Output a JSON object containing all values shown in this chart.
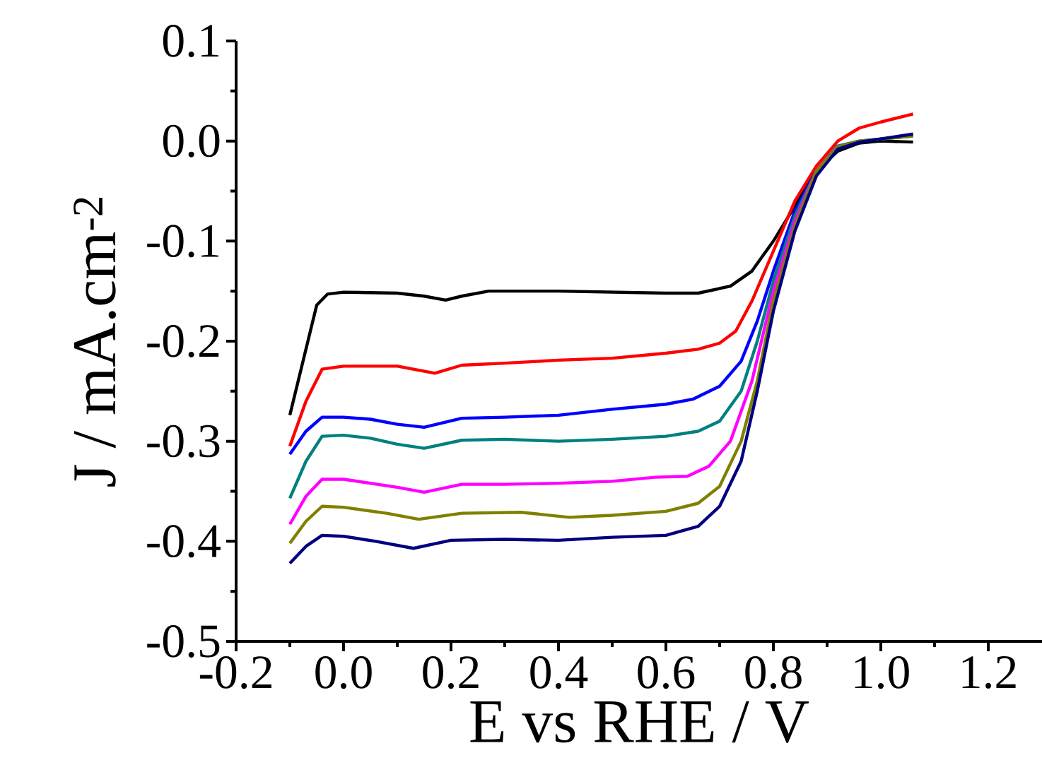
{
  "chart_data": {
    "type": "line",
    "xlabel": "E vs RHE / V",
    "ylabel": "J / mA.cm$^{-2}$",
    "xlim": [
      -0.2,
      1.3
    ],
    "ylim": [
      -0.5,
      0.1
    ],
    "xticks": [
      {
        "value": -0.2,
        "label": "-0.2"
      },
      {
        "value": 0,
        "label": "0.0"
      },
      {
        "value": 0.2,
        "label": "0.2"
      },
      {
        "value": 0.4,
        "label": "0.4"
      },
      {
        "value": 0.6,
        "label": "0.6"
      },
      {
        "value": 0.8,
        "label": "0.8"
      },
      {
        "value": 1.0,
        "label": "1.0"
      },
      {
        "value": 1.2,
        "label": "1.2"
      }
    ],
    "yticks": [
      {
        "value": -0.5,
        "label": "-0.5"
      },
      {
        "value": -0.4,
        "label": "-0.4"
      },
      {
        "value": -0.3,
        "label": "-0.3"
      },
      {
        "value": -0.2,
        "label": "-0.2"
      },
      {
        "value": -0.1,
        "label": "-0.1"
      },
      {
        "value": 0,
        "label": "0.0"
      },
      {
        "value": 0.1,
        "label": "0.1"
      }
    ],
    "grid": false,
    "marker": "none",
    "line_style": "solid",
    "series": [
      {
        "color": "#000000",
        "x": [
          -0.1,
          -0.05,
          -0.03,
          0.0,
          0.1,
          0.15,
          0.19,
          0.22,
          0.27,
          0.4,
          0.6,
          0.66,
          0.72,
          0.76,
          0.8,
          0.84,
          0.88,
          0.92,
          0.96,
          1.0,
          1.06
        ],
        "values": [
          -0.274,
          -0.164,
          -0.153,
          -0.151,
          -0.152,
          -0.155,
          -0.159,
          -0.155,
          -0.15,
          -0.15,
          -0.152,
          -0.152,
          -0.145,
          -0.13,
          -0.1,
          -0.065,
          -0.03,
          -0.01,
          -0.002,
          0.0,
          -0.001
        ]
      },
      {
        "color": "#ff0000",
        "x": [
          -0.1,
          -0.07,
          -0.04,
          0.0,
          0.1,
          0.17,
          0.22,
          0.3,
          0.4,
          0.5,
          0.6,
          0.66,
          0.7,
          0.73,
          0.76,
          0.8,
          0.84,
          0.88,
          0.92,
          0.96,
          1.0,
          1.06
        ],
        "values": [
          -0.305,
          -0.26,
          -0.228,
          -0.225,
          -0.225,
          -0.232,
          -0.224,
          -0.222,
          -0.219,
          -0.217,
          -0.212,
          -0.208,
          -0.202,
          -0.19,
          -0.16,
          -0.11,
          -0.06,
          -0.025,
          0.0,
          0.013,
          0.019,
          0.027
        ]
      },
      {
        "color": "#0000ff",
        "x": [
          -0.1,
          -0.07,
          -0.04,
          0.0,
          0.05,
          0.1,
          0.15,
          0.22,
          0.3,
          0.4,
          0.5,
          0.6,
          0.65,
          0.7,
          0.74,
          0.77,
          0.8,
          0.84,
          0.88,
          0.92
        ],
        "values": [
          -0.313,
          -0.29,
          -0.276,
          -0.276,
          -0.278,
          -0.283,
          -0.286,
          -0.277,
          -0.276,
          -0.274,
          -0.268,
          -0.263,
          -0.258,
          -0.245,
          -0.22,
          -0.18,
          -0.13,
          -0.07,
          -0.03,
          -0.005
        ]
      },
      {
        "color": "#008080",
        "x": [
          -0.1,
          -0.07,
          -0.04,
          0.0,
          0.05,
          0.1,
          0.15,
          0.22,
          0.3,
          0.4,
          0.5,
          0.6,
          0.66,
          0.7,
          0.74,
          0.77,
          0.8,
          0.84,
          0.88,
          0.92,
          0.96,
          1.0,
          1.06
        ],
        "values": [
          -0.357,
          -0.32,
          -0.295,
          -0.294,
          -0.297,
          -0.303,
          -0.307,
          -0.299,
          -0.298,
          -0.3,
          -0.298,
          -0.295,
          -0.29,
          -0.28,
          -0.25,
          -0.2,
          -0.14,
          -0.075,
          -0.03,
          -0.005,
          0.0,
          0.002,
          0.005
        ]
      },
      {
        "color": "#ff00ff",
        "x": [
          -0.1,
          -0.07,
          -0.04,
          0.0,
          0.1,
          0.15,
          0.22,
          0.3,
          0.4,
          0.5,
          0.58,
          0.64,
          0.68,
          0.72,
          0.76,
          0.8,
          0.84,
          0.88,
          0.92
        ],
        "values": [
          -0.383,
          -0.355,
          -0.338,
          -0.338,
          -0.346,
          -0.351,
          -0.343,
          -0.343,
          -0.342,
          -0.34,
          -0.336,
          -0.335,
          -0.325,
          -0.3,
          -0.24,
          -0.15,
          -0.08,
          -0.03,
          -0.006
        ]
      },
      {
        "color": "#808000",
        "x": [
          -0.1,
          -0.07,
          -0.04,
          0.0,
          0.08,
          0.14,
          0.22,
          0.33,
          0.42,
          0.5,
          0.6,
          0.66,
          0.7,
          0.74,
          0.77,
          0.8,
          0.84,
          0.88,
          0.92,
          0.96,
          1.06
        ],
        "values": [
          -0.402,
          -0.38,
          -0.365,
          -0.366,
          -0.372,
          -0.378,
          -0.372,
          -0.371,
          -0.376,
          -0.374,
          -0.37,
          -0.362,
          -0.345,
          -0.3,
          -0.24,
          -0.16,
          -0.085,
          -0.03,
          -0.006,
          0.0,
          0.005
        ]
      },
      {
        "color": "#000080",
        "x": [
          -0.1,
          -0.07,
          -0.04,
          0.0,
          0.06,
          0.13,
          0.2,
          0.3,
          0.4,
          0.5,
          0.6,
          0.66,
          0.7,
          0.74,
          0.77,
          0.8,
          0.84,
          0.88,
          0.92,
          0.96,
          1.06
        ],
        "values": [
          -0.422,
          -0.405,
          -0.394,
          -0.395,
          -0.4,
          -0.407,
          -0.399,
          -0.398,
          -0.399,
          -0.396,
          -0.394,
          -0.385,
          -0.365,
          -0.32,
          -0.25,
          -0.17,
          -0.09,
          -0.035,
          -0.008,
          -0.001,
          0.007
        ]
      }
    ]
  }
}
